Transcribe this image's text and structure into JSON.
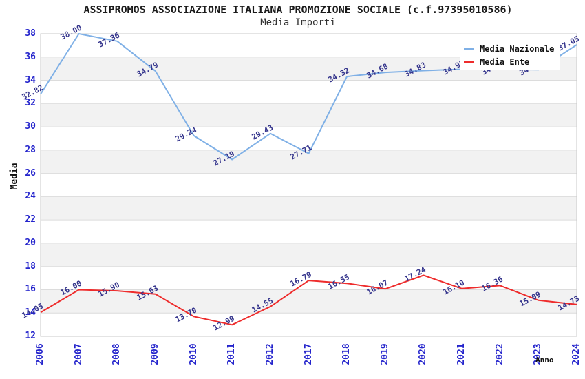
{
  "header": {
    "title": "ASSIPROMOS ASSOCIAZIONE ITALIANA PROMOZIONE SOCIALE (c.f.97395010586)",
    "subtitle": "Media Importi"
  },
  "legend": {
    "items": [
      {
        "label": "Media Nazionale",
        "color": "#7fb0e6"
      },
      {
        "label": "Media Ente",
        "color": "#ee2c2c"
      }
    ]
  },
  "axes": {
    "y_label": "Media",
    "x_label": "Anno",
    "y_ticks": [
      12,
      14,
      16,
      18,
      20,
      22,
      24,
      26,
      28,
      30,
      32,
      34,
      36,
      38
    ],
    "tick_color": "#2424cc"
  },
  "chart_data": {
    "type": "line",
    "title": "ASSIPROMOS ASSOCIAZIONE ITALIANA PROMOZIONE SOCIALE (c.f.97395010586)",
    "subtitle": "Media Importi",
    "xlabel": "Anno",
    "ylabel": "Media",
    "categories": [
      "2006",
      "2007",
      "2008",
      "2009",
      "2010",
      "2011",
      "2012",
      "2017",
      "2018",
      "2019",
      "2020",
      "2021",
      "2022",
      "2023",
      "2024"
    ],
    "series": [
      {
        "name": "Media Nazionale",
        "color": "#7fb0e6",
        "values": [
          32.82,
          38.0,
          37.36,
          34.79,
          29.24,
          27.19,
          29.43,
          27.71,
          34.32,
          34.68,
          34.83,
          34.95,
          34.95,
          34.9,
          37.05
        ],
        "labels": [
          "32.82",
          "38.00",
          "37.36",
          "34.79",
          "29.24",
          "27.19",
          "29.43",
          "27.71",
          "34.32",
          "34.68",
          "34.83",
          "34.95",
          "34.95",
          "34.90",
          "37.05"
        ]
      },
      {
        "name": "Media Ente",
        "color": "#ee2c2c",
        "values": [
          14.05,
          16.0,
          15.9,
          15.63,
          13.7,
          12.99,
          14.55,
          16.79,
          16.55,
          16.07,
          17.24,
          16.1,
          16.36,
          15.09,
          14.73
        ],
        "labels": [
          "14.05",
          "16.00",
          "15.90",
          "15.63",
          "13.70",
          "12.99",
          "14.55",
          "16.79",
          "16.55",
          "16.07",
          "17.24",
          "16.10",
          "16.36",
          "15.09",
          "14.73"
        ]
      }
    ],
    "ylim": [
      12,
      38
    ],
    "ytick_step": 2,
    "grid": true,
    "band_colors": [
      "#ffffff",
      "#f2f2f2"
    ],
    "gridline_color": "#dcdcdc",
    "border_color": "#c8c8c8",
    "legend_position": "top-right",
    "label_color": "#34348c"
  }
}
